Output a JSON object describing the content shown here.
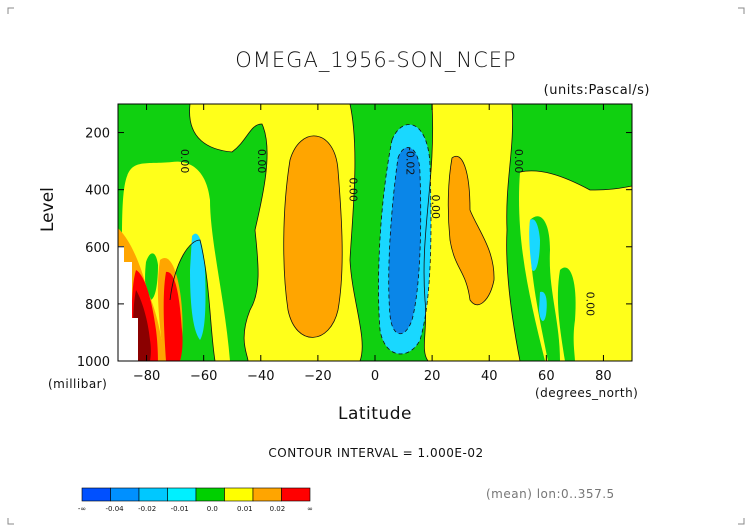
{
  "chart_data": {
    "type": "heatmap",
    "title": "OMEGA_1956-SON_NCEP",
    "units_label": "(units:Pascal/s)",
    "xlabel": "Latitude",
    "x_unit_label": "(degrees_north)",
    "ylabel": "Level",
    "y_unit_label": "(millibar)",
    "x_ticks": [
      -80,
      -60,
      -40,
      -20,
      0,
      20,
      40,
      60,
      80
    ],
    "y_ticks": [
      200,
      400,
      600,
      800,
      1000
    ],
    "xlim": [
      -90,
      90
    ],
    "ylim": [
      1000,
      100
    ],
    "contour_interval_label": "CONTOUR INTERVAL = 1.000E-02",
    "contour_labels": [
      "0.00",
      "0.00",
      "0.00",
      "-0.02",
      "0.00",
      "0.00",
      "0.00"
    ],
    "legend_labels": [
      "-∞",
      "-0.04",
      "-0.02",
      "-0.01",
      "0.0",
      "0.01",
      "0.02",
      "∞"
    ],
    "legend_colors": [
      "#0050ff",
      "#0090ff",
      "#00c8ff",
      "#00f0ff",
      "#00d000",
      "#ffff00",
      "#ffa500",
      "#ff0000"
    ],
    "footer_note": "(mean) lon:0..357.5",
    "colors": {
      "neg_strong": "#0a86e8",
      "neg_weak": "#19d8ff",
      "near_zero_neg": "#10d010",
      "pos_weak": "#ffff1a",
      "pos_mid": "#ffa500",
      "pos_strong": "#ff0000",
      "pos_extreme": "#8b0000"
    }
  }
}
